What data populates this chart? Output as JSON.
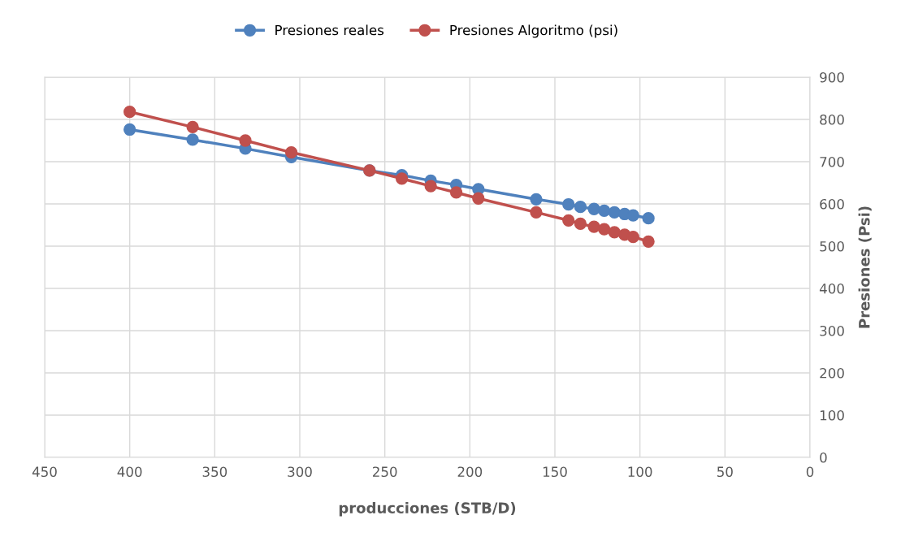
{
  "chart_data": {
    "type": "line",
    "xlabel": "producciones (STB/D)",
    "ylabel": "Presiones (Psi)",
    "x": [
      400,
      363,
      332,
      305,
      259,
      240,
      223,
      208,
      195,
      161,
      142,
      135,
      127,
      121,
      115,
      109,
      104,
      95
    ],
    "series": [
      {
        "name": "Presiones reales",
        "color": "#4f81bd",
        "values": [
          776,
          752,
          731,
          711,
          679,
          668,
          655,
          645,
          635,
          611,
          599,
          593,
          588,
          584,
          580,
          576,
          573,
          566
        ]
      },
      {
        "name": "Presiones Algoritmo (psi)",
        "color": "#c0504d",
        "values": [
          818,
          782,
          750,
          722,
          679,
          660,
          642,
          627,
          613,
          580,
          561,
          553,
          546,
          540,
          533,
          527,
          522,
          511
        ]
      }
    ],
    "xlim": [
      450,
      0
    ],
    "xticks": [
      450,
      400,
      350,
      300,
      250,
      200,
      150,
      100,
      50,
      0
    ],
    "ylim": [
      0,
      900
    ],
    "yticks": [
      0,
      100,
      200,
      300,
      400,
      500,
      600,
      700,
      800,
      900
    ],
    "grid": true,
    "legend": "top",
    "marker": "circle",
    "line_style": "solid"
  }
}
